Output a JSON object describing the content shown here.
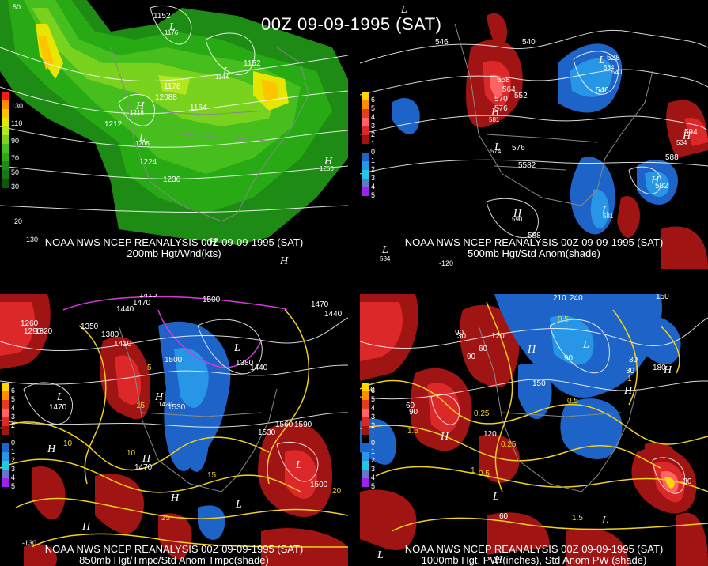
{
  "header": {
    "title": "00Z 09-09-1995 (SAT)"
  },
  "panels": [
    {
      "line1": "NOAA NWS NCEP REANALYSIS 00Z 09-09-1995 (SAT)",
      "line2": "200mb Hgt/Wnd(kts)",
      "legend": [
        {
          "label": "130",
          "color": "#ff1a1a"
        },
        {
          "label": "",
          "color": "#ff8c00"
        },
        {
          "label": "110",
          "color": "#ffc400"
        },
        {
          "label": "",
          "color": "#e6e600"
        },
        {
          "label": "90",
          "color": "#b4e61e"
        },
        {
          "label": "",
          "color": "#78d21e"
        },
        {
          "label": "70",
          "color": "#46be1e"
        },
        {
          "label": "",
          "color": "#28aa14"
        },
        {
          "label": "50",
          "color": "#1e8c14"
        },
        {
          "label": "",
          "color": "#147814"
        },
        {
          "label": "30",
          "color": "#0a5a0a"
        }
      ],
      "labels": [
        "1152",
        "1176",
        "1152",
        "1178",
        "12088",
        "1144",
        "1164",
        "1218",
        "1212",
        "1205",
        "1224",
        "1236",
        "1250",
        "50",
        "20",
        "-130"
      ]
    },
    {
      "line1": "NOAA NWS NCEP REANALYSIS 00Z 09-09-1995 (SAT)",
      "line2": "500mb Hgt/Std Anom(shade)",
      "legend": [
        {
          "label": "6",
          "color": "#ffd700"
        },
        {
          "label": "5",
          "color": "#ff8c00"
        },
        {
          "label": "4",
          "color": "#e63c1e"
        },
        {
          "label": "3",
          "color": "#ff6464"
        },
        {
          "label": "2",
          "color": "#dc2828"
        },
        {
          "label": "1",
          "color": "#a01414"
        },
        {
          "label": "0",
          "color": "#000000"
        },
        {
          "label": "1",
          "color": "#1e64c8"
        },
        {
          "label": "2",
          "color": "#2896e6"
        },
        {
          "label": "3",
          "color": "#1ec8e6"
        },
        {
          "label": "4",
          "color": "#6478c8"
        },
        {
          "label": "5",
          "color": "#a020f0"
        }
      ],
      "labels": [
        "546",
        "540",
        "528",
        "534",
        "540",
        "558",
        "564",
        "552",
        "570",
        "576",
        "546",
        "581",
        "594",
        "534",
        "576",
        "582",
        "574",
        "588",
        "5582",
        "590",
        "581",
        "588",
        "584",
        "-120"
      ]
    },
    {
      "line1": "NOAA NWS NCEP REANALYSIS 00Z 09-09-1995 (SAT)",
      "line2": "850mb Hgt/Tmpc/Std Anom Tmpc(shade)",
      "legend": [
        {
          "label": "6",
          "color": "#ffd700"
        },
        {
          "label": "5",
          "color": "#ff8c00"
        },
        {
          "label": "4",
          "color": "#e63c1e"
        },
        {
          "label": "3",
          "color": "#ff6464"
        },
        {
          "label": "2",
          "color": "#dc2828"
        },
        {
          "label": "1",
          "color": "#a01414"
        },
        {
          "label": "0",
          "color": "#000000"
        },
        {
          "label": "1",
          "color": "#1e64c8"
        },
        {
          "label": "2",
          "color": "#2896e6"
        },
        {
          "label": "3",
          "color": "#1ec8e6"
        },
        {
          "label": "4",
          "color": "#6478c8"
        },
        {
          "label": "5",
          "color": "#a020f0"
        }
      ],
      "labels": [
        "1410",
        "1470",
        "1500",
        "1440",
        "1470",
        "1350",
        "1380",
        "1410",
        "1320",
        "1290",
        "1260",
        "1500",
        "1440",
        "1380",
        "1440",
        "1530",
        "1560",
        "1590",
        "1470",
        "1500",
        "1530",
        "1470",
        "1420",
        "15",
        "15",
        "10",
        "5",
        "20",
        "10",
        "25",
        "-130"
      ]
    },
    {
      "line1": "NOAA NWS NCEP REANALYSIS 00Z 09-09-1995 (SAT)",
      "line2": "1000mb Hgt, PW (inches), Std Anom PW (shade)",
      "legend": [
        {
          "label": "6",
          "color": "#ffd700"
        },
        {
          "label": "5",
          "color": "#ff8c00"
        },
        {
          "label": "4",
          "color": "#e63c1e"
        },
        {
          "label": "3",
          "color": "#ff6464"
        },
        {
          "label": "2",
          "color": "#dc2828"
        },
        {
          "label": "1",
          "color": "#a01414"
        },
        {
          "label": "0",
          "color": "#000000"
        },
        {
          "label": "1",
          "color": "#1e64c8"
        },
        {
          "label": "2",
          "color": "#2896e6"
        },
        {
          "label": "3",
          "color": "#1ec8e6"
        },
        {
          "label": "4",
          "color": "#6478c8"
        },
        {
          "label": "5",
          "color": "#a020f0"
        }
      ],
      "labels": [
        "210",
        "240",
        "150",
        "60",
        "90",
        "120",
        "90",
        "30",
        "60",
        "90",
        "150",
        "0.5",
        "0.25",
        "1",
        "1.5",
        "0.5",
        "0.25",
        "0.5",
        "1",
        "1.5",
        "90",
        "30",
        "120",
        "150",
        "180",
        "30",
        "-30",
        "60"
      ]
    }
  ]
}
